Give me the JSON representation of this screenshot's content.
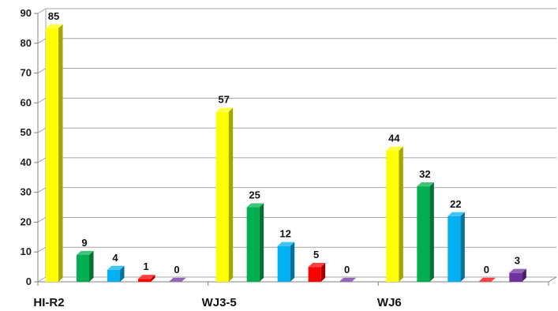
{
  "chart_data": {
    "type": "bar",
    "categories": [
      "HI-R2",
      "WJ3-5",
      "WJ6"
    ],
    "series": [
      {
        "values": [
          85,
          57,
          44
        ],
        "color": "#ffff00"
      },
      {
        "values": [
          9,
          25,
          32
        ],
        "color": "#00b050"
      },
      {
        "values": [
          4,
          12,
          22
        ],
        "color": "#00b0f0"
      },
      {
        "values": [
          1,
          5,
          0
        ],
        "color": "#ff0000"
      },
      {
        "values": [
          0,
          0,
          3
        ],
        "color": "#7030a0"
      }
    ],
    "ylim": [
      0,
      90
    ],
    "yticks": [
      0,
      10,
      20,
      30,
      40,
      50,
      60,
      70,
      80,
      90
    ],
    "xlabel": "",
    "ylabel": "",
    "title": "",
    "grid": true,
    "three_d": true,
    "data_labels": true
  }
}
